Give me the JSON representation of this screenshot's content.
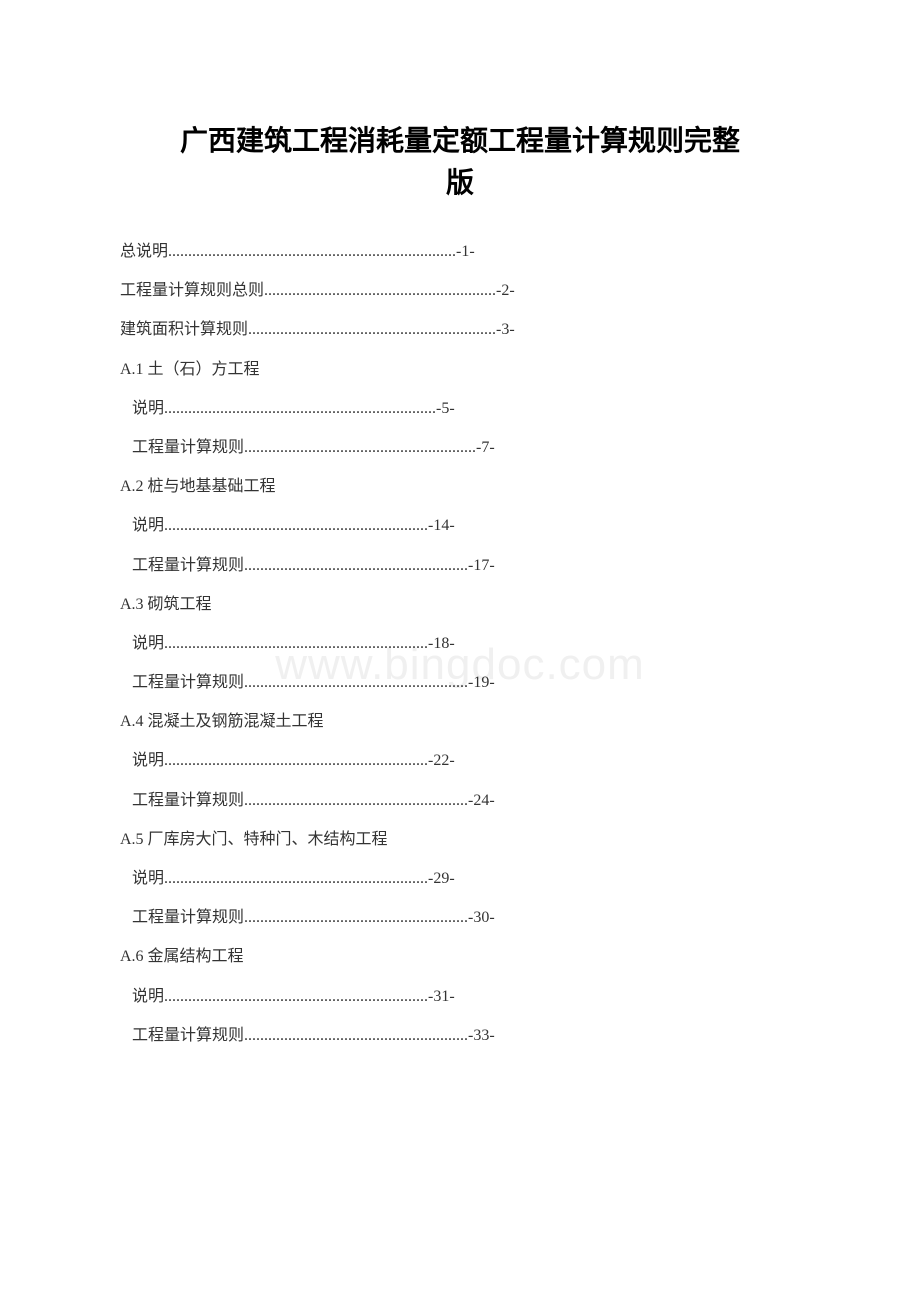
{
  "title_line1": "广西建筑工程消耗量定额工程量计算规则完整",
  "title_line2": "版",
  "watermark": "www.bingdoc.com",
  "toc": [
    {
      "type": "dotline",
      "label": "总说明",
      "dots": "........................................................................",
      "page": "-1-"
    },
    {
      "type": "dotline",
      "label": "工程量计算规则总则",
      "dots": "..........................................................",
      "page": "-2-"
    },
    {
      "type": "dotline",
      "label": "建筑面积计算规则",
      "dots": "..............................................................",
      "page": "-3-"
    },
    {
      "type": "head",
      "label": "A.1 土（石）方工程"
    },
    {
      "type": "dotline",
      "label": "说明",
      "dots": "....................................................................",
      "page": "-5-",
      "indent": true
    },
    {
      "type": "dotline",
      "label": "工程量计算规则",
      "dots": "..........................................................",
      "page": "-7-",
      "indent": true
    },
    {
      "type": "head",
      "label": "A.2 桩与地基基础工程"
    },
    {
      "type": "dotline",
      "label": "说明",
      "dots": "..................................................................",
      "page": "-14-",
      "indent": true
    },
    {
      "type": "dotline",
      "label": "工程量计算规则",
      "dots": "........................................................",
      "page": "-17-",
      "indent": true
    },
    {
      "type": "head",
      "label": "A.3 砌筑工程"
    },
    {
      "type": "dotline",
      "label": "说明",
      "dots": "..................................................................",
      "page": "-18-",
      "indent": true
    },
    {
      "type": "dotline",
      "label": "工程量计算规则",
      "dots": "........................................................",
      "page": "-19-",
      "indent": true
    },
    {
      "type": "head",
      "label": "A.4 混凝土及钢筋混凝土工程"
    },
    {
      "type": "dotline",
      "label": "说明",
      "dots": "..................................................................",
      "page": "-22-",
      "indent": true
    },
    {
      "type": "dotline",
      "label": "工程量计算规则",
      "dots": "........................................................",
      "page": "-24-",
      "indent": true
    },
    {
      "type": "head",
      "label": "A.5 厂库房大门、特种门、木结构工程"
    },
    {
      "type": "dotline",
      "label": "说明",
      "dots": "..................................................................",
      "page": "-29-",
      "indent": true
    },
    {
      "type": "dotline",
      "label": "工程量计算规则",
      "dots": "........................................................",
      "page": "-30-",
      "indent": true
    },
    {
      "type": "head",
      "label": "A.6 金属结构工程"
    },
    {
      "type": "dotline",
      "label": "说明",
      "dots": "..................................................................",
      "page": "-31-",
      "indent": true
    },
    {
      "type": "dotline",
      "label": "工程量计算规则",
      "dots": "........................................................",
      "page": "-33-",
      "indent": true
    }
  ]
}
